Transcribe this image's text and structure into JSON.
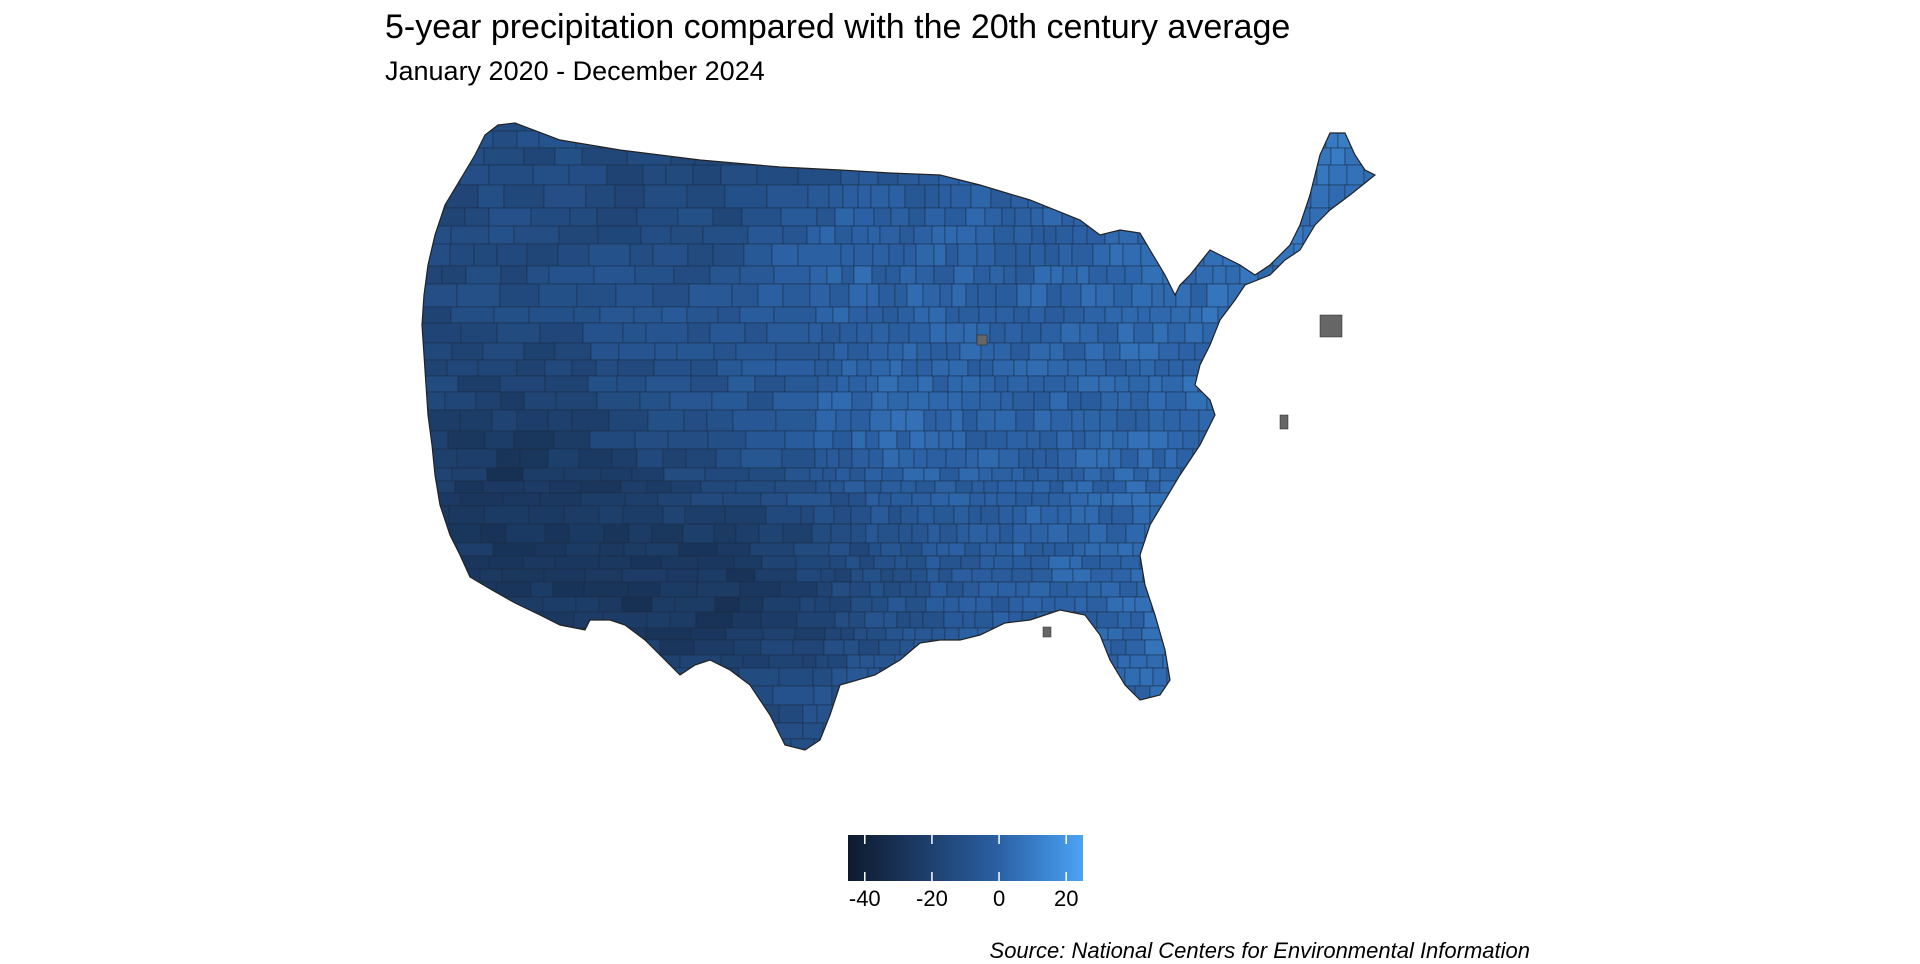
{
  "title": "5-year precipitation compared with the 20th century average",
  "subtitle": "January 2020 - December 2024",
  "map": {
    "region": "Contiguous United States (county level)",
    "color_low": "#0e1a2e",
    "color_mid": "#2b60a3",
    "color_high": "#4aa3f5",
    "na_color": "#666666"
  },
  "legend": {
    "ticks": [
      -40,
      -20,
      0,
      20
    ],
    "tick_labels": [
      "-40",
      "-20",
      "0",
      "20"
    ],
    "range": [
      -45,
      25
    ]
  },
  "source": "Source: National Centers for Environmental Information"
}
